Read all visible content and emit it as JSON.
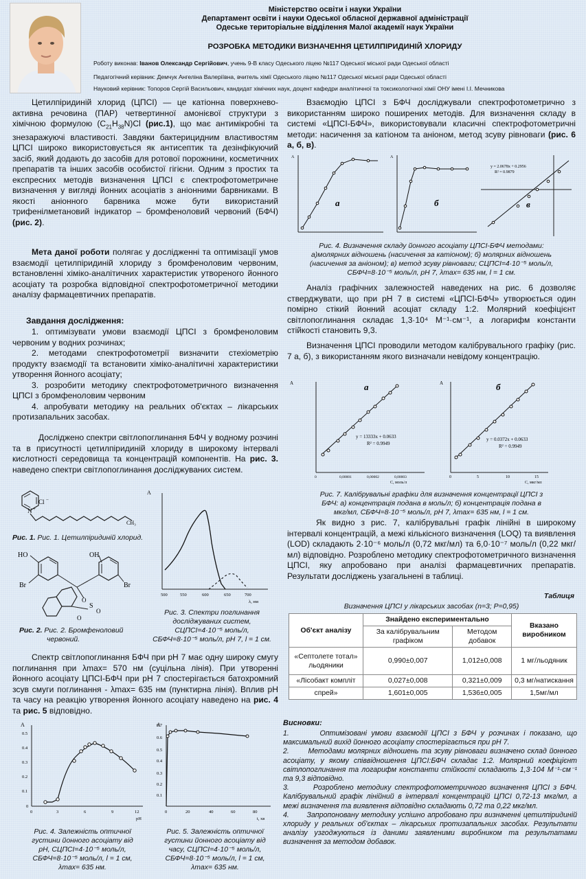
{
  "header": {
    "ministry": "Міністерство освіти і науки України",
    "department": "Департамент освіти і науки Одеської обласної державної адміністрації",
    "branch": "Одеське територіальне відділення Малої академії наук України",
    "title": "РОЗРОБКА МЕТОДИКИ ВИЗНАЧЕННЯ ЦЕТИЛПІРИДИНІЙ ХЛОРИДУ"
  },
  "authors": {
    "author_label": "Роботу виконав:",
    "author_name": "Іванов Олександр Сергійович",
    "author_rest": ", учень 9-В класу Одеського ліцею №117 Одеської міської ради Одеської області",
    "ped": "Педагогічний керівник: Демчук Ангеліна Валеріївна, вчитель хімії Одеського ліцею №117 Одеської міської ради Одеської області",
    "sci": "Науковий керівник: Топоров Сергій Васильович, кандидат хімічних наук, доцент кафедри аналітичної та токсикологічної хімії ОНУ імені І.І. Мечникова"
  },
  "left": {
    "intro_1": "Цетилпіридиній хлорид (ЦПСІ) — це катіонна поверхнево-активна речовина (ПАР) четвертинної амонієвої структури з хімічною формулою (C",
    "formula_sub1": "21",
    "formula_h": "H",
    "formula_sub2": "38",
    "formula_rest": "N)Cl",
    "intro_ref": "(рис.1)",
    "intro_2": ", що має антимікробні та знезаражуючі властивості. Завдяки бактерицидним властивостям ЦПСІ широко використовується як антисептик та дезінфікуючий засіб, який додають до засобів для ротової порожнини, косметичних препаратів та інших засобів особистої гігієни. Одним з простих та експресних методів визначення ЦПСІ є спектрофотометричне визначення у вигляді йонних асоціатів з аніонними барвниками. В якості аніонного барвника може бути використаний трифенілметановий індикатор – бромфеноловий червоний (БФЧ) ",
    "intro_ref2": "(рис. 2)",
    "aim_bold": "Мета даної роботи",
    "aim_text": " полягає у дослідженні та оптимізації умов взаємодії цетилпіридиній хлориду з бромфеноловим червоним, встановленні хіміко-аналітичних характеристик утвореного йонного асоціату та розробка відповідної спектрофотометричної методики аналізу фармацевтичних препаратів.",
    "tasks_title": "Завдання дослідження:",
    "tasks": [
      "1. оптимізувати умови взаємодії ЦПСІ з бромфеноловим червоним у водних розчинах;",
      "2. методами спектрофотометрії визначити стехіометрію продукту взаємодії та встановити хіміко-аналітичні характеристики утворення йонного асоціату;",
      "3. розробити методику спектрофотометричного визначення ЦПСІ з бромфеноловим червоним",
      "4. апробувати методику на реальних об'єктах – лікарських протизапальних засобах."
    ],
    "spectra_text_1": "Досліджено спектри світлопоглинання БФЧ у водному розчині та в присутності цетилпіридиній хлориду в широкому інтервалі кислотності середовища та концентрацій компонентів. На ",
    "spectra_ref": "рис. 3.",
    "spectra_text_2": " наведено спектри світлопоглинання досліджуваних систем.",
    "fig1_cap": "Рис. 1. Цетилпіридиній хлорид.",
    "fig2_cap_1": "Рис. 2. Бромфеноловий",
    "fig2_cap_2": "червоний.",
    "fig3_cap_1": "Рис. 3. Спектри поглинання",
    "fig3_cap_2": "досліджуваних систем,",
    "fig3_cap_3": "CЦПСІ=4·10⁻⁵ моль/л,",
    "fig3_cap_4": "CБФЧ=8·10⁻⁵ моль/л, pH  7, l = 1 см.",
    "band_text": "Спектр світлопоглинання БФЧ при pH 7 має одну широку смугу поглинання при λmax= 570 нм (суцільна лінія). При утворенні йонного асоціату ЦПСІ-БФЧ при pH 7 спостерігається батохромний зсув смуги поглинання - λmax= 635 нм (пунктирна лінія). Вплив pH та часу на реакцію утворення йонного асоціату наведено на ",
    "band_ref1": "рис. 4",
    "band_mid": " та ",
    "band_ref2": "рис. 5",
    "band_end": " відповідно.",
    "fig4b_cap": [
      "Рис. 4. Залежність оптичної",
      "густини йонного асоціату від",
      "pH, CЦПСІ=4·10⁻⁵ моль/л,",
      "CБФЧ=8·10⁻⁵ моль/л, l = 1 см,",
      "λmax= 635 нм."
    ],
    "fig5_cap": [
      "Рис. 5. Залежність оптичної",
      "густини йонного асоціату від",
      "часу, CЦПСІ=4·10⁻⁵ моль/л,",
      "CБФЧ=8·10⁻⁵ моль/л, l = 1 см,",
      "λmax= 635 нм."
    ]
  },
  "right": {
    "p1": "Взаємодію ЦПСІ з БФЧ досліджували спектрофотометрично з використанням широко поширених методів. Для визначення складу в системі «ЦПСІ-БФЧ», використовували класичні спектрофотометричні методи: насичення за катіоном та аніоном, метод зсуву рівноваги ",
    "p1_ref": "(рис. 6 а, б, в)",
    "fig6_labels": [
      "а",
      "б",
      "в"
    ],
    "fig6_eq": "y = 2.0678x + 0.2956",
    "fig6_r2": "R² = 0.9879",
    "fig6_cap": [
      "Рис. 4. Визначення складу йонного асоціату ЦПСІ-БФЧ методами:",
      "а)молярних відношень (насичення за катіоном); б) молярних відношень",
      "(насичення за аніоном); в) метод зсуву рівноваги; CЦПСІ=4·10⁻⁵ моль/л,",
      "CБФЧ=8·10⁻⁵ моль/л, pH 7,  λmax= 635 нм, l = 1 см."
    ],
    "p2": "Аналіз графічних залежностей наведених на рис. 6 дозволяє стверджувати, що при pH 7 в системі «ЦПСІ-БФЧ» утворюється один помірно стікий йонний асоціат складу 1:2. Молярний коефіцієнт світлопоглинання складає 1,3·10⁴ М⁻¹·см⁻¹, а логарифм константи стійкості становить 9,3.",
    "p3": "Визначення ЦПСІ проводили методом калібрувального графіку (рис. 7 а, б), з використанням якого визначали невідому концентрацію.",
    "fig7a_eq": "y = 13333x + 0.0633",
    "fig7a_r2": "R² = 0.9949",
    "fig7b_eq": "y = 0.0372x + 0.0633",
    "fig7b_r2": "R² = 0.9949",
    "fig7a_xlabel": "C, моль/л",
    "fig7b_xlabel": "C, мкг/мл",
    "fig7_cap": [
      "Рис. 7. Калібрувальні графіки для визначення концентрації ЦПСІ з",
      "БФЧ: а) концентрація подана в моль/л; б) концентрація подана в",
      "мкг/мл, CБФЧ=8·10⁻⁵ моль/л, pH 7,  λmax= 635 нм, l = 1 см."
    ],
    "p4": "Як видно з рис. 7, калібрувальні графік лінійні в широкому інтервалі концентрацій, а межі кількісного визначення (LOQ) та виявлення (LOD) складають 2·10⁻⁶ моль/л (0,72 мкг/мл) та 6,0·10⁻⁷ моль/л (0,22 мкг/мл) відповідно. Розроблено методику спектрофотометричного визначення ЦПСІ, яку апробовано при аналізі фармацевтичних препаратів. Результати досліджень узагальнені в таблиці.",
    "table_label": "Таблиця",
    "table_title": "Визначення ЦПСІ у лікарських засобах (n=3; P=0,95)",
    "table_head": {
      "object": "Об'єкт аналізу",
      "found": "Знайдено експериментально",
      "cal": "За калібрувальним графіком",
      "add": "Методом добавок",
      "stated": "Вказано виробником"
    },
    "table_rows": [
      {
        "object": "«Септолете тотал» льодяники",
        "cal": "0,990±0,007",
        "add": "1,012±0,008",
        "stated": "1 мг/льодяник"
      },
      {
        "object": "«Лісобакт компліт",
        "cal": "0,027±0,008",
        "add": "0,321±0,009",
        "stated": "0,3 мг/натискання"
      },
      {
        "object": "спрей»",
        "cal": "1,601±0,005",
        "add": "1,536±0,005",
        "stated": "1,5мг/мл"
      }
    ],
    "concl_title": "Висновки:",
    "conclusions": [
      "1.       Оптимізовані умови взаємодії ЦПСІ з БФЧ у розчинах і показано, що максимальний вихід йонного асоціату спостерігається при pH 7.",
      "2.       Методами молярних відношень та зсуву рівноваги визначено склад йонного асоціату, у якому співвідношення ЦПСІ:БФЧ складає 1:2. Молярний коефіцієнт світлопоглинання та логарифм константи стійкості складають 1,3·104 М⁻¹·см⁻¹ та 9,3 відповідно.",
      "3.       Розроблено методику спектрофотометричного визначення ЦПСІ з БФЧ. Калібрувальний графік лінійний в інтервалі концентрацій ЦПСІ 0,72-13 мкг/мл, а межі визначення та виявлення відповідно складають 0,72 та 0,22 мкг/мл.",
      "4.       Запропоновану методику успішно апробовано при визначенні цетилпіридиній хлориду у реальних об'єктах – лікарських протизапальних засобах. Результати аналізу узгоджуються із даними заявленими виробником та результатами визначення за методом добавок."
    ]
  }
}
